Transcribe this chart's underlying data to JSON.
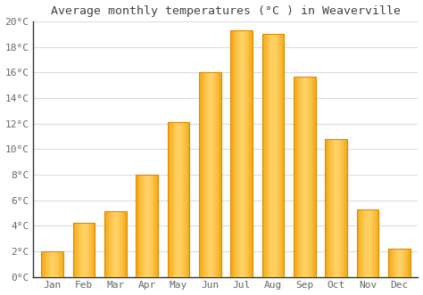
{
  "title": "Average monthly temperatures (°C ) in Weaverville",
  "months": [
    "Jan",
    "Feb",
    "Mar",
    "Apr",
    "May",
    "Jun",
    "Jul",
    "Aug",
    "Sep",
    "Oct",
    "Nov",
    "Dec"
  ],
  "values": [
    2.0,
    4.2,
    5.1,
    8.0,
    12.1,
    16.0,
    19.3,
    19.0,
    15.7,
    10.8,
    5.3,
    2.2
  ],
  "bar_color": "#FFAA00",
  "bar_edge_color": "#E08800",
  "ylim": [
    0,
    20
  ],
  "yticks": [
    0,
    2,
    4,
    6,
    8,
    10,
    12,
    14,
    16,
    18,
    20
  ],
  "ytick_labels": [
    "0°C",
    "2°C",
    "4°C",
    "6°C",
    "8°C",
    "10°C",
    "12°C",
    "14°C",
    "16°C",
    "18°C",
    "20°C"
  ],
  "background_color": "#ffffff",
  "grid_color": "#d8dce8",
  "title_fontsize": 9.5,
  "tick_fontsize": 8,
  "bar_width": 0.7,
  "spine_color": "#333333",
  "tick_color": "#666666"
}
